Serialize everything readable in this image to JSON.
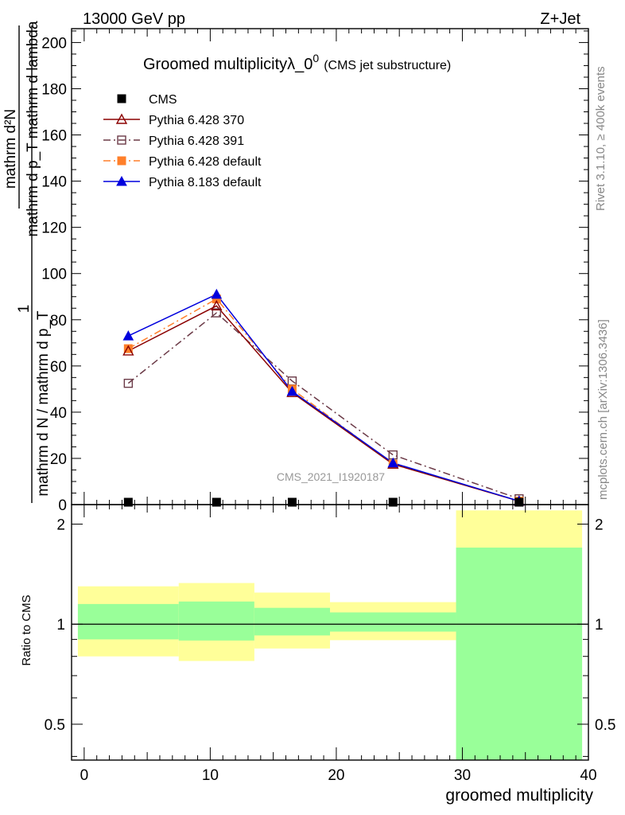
{
  "header": {
    "left": "13000 GeV pp",
    "right": "Z+Jet"
  },
  "side_labels": {
    "rivet": "Rivet 3.1.10, ≥ 400k events",
    "mcplots": "mcplots.cern.ch [arXiv:1306.3436]"
  },
  "analysis_id": "CMS_2021_I1920187",
  "chart_data": [
    {
      "type": "line",
      "title": "Groomed multiplicity",
      "title_symbol": "λ_0",
      "title_superscript": "0",
      "subtitle": "(CMS jet substructure)",
      "ylabel_numerator": "mathrm d²N",
      "ylabel_denominator": "mathrm d p_T mathrm d lambda",
      "ylabel_left_numerator": "1",
      "ylabel_left_denominator": "mathrm d N / mathrm d p_T",
      "xlim": [
        -1,
        40
      ],
      "ylim": [
        0,
        206
      ],
      "yticks": [
        0,
        20,
        40,
        60,
        80,
        100,
        120,
        140,
        160,
        180,
        200
      ],
      "legend_position": "top-left",
      "series": [
        {
          "name": "CMS",
          "color": "#000000",
          "marker": "square-filled",
          "line": "none",
          "x": [
            3.5,
            10.5,
            16.5,
            24.5,
            34.5
          ],
          "y": [
            0.3,
            0.3,
            0.3,
            0.3,
            0.3
          ]
        },
        {
          "name": "Pythia 6.428 370",
          "color": "#8b0000",
          "marker": "triangle-open",
          "line": "solid",
          "x": [
            3.5,
            10.5,
            16.5,
            24.5,
            34.5
          ],
          "y": [
            66.5,
            86,
            48.5,
            17.5,
            1.5
          ]
        },
        {
          "name": "Pythia 6.428 391",
          "color": "#6b3a47",
          "marker": "square-open",
          "line": "dashdot",
          "x": [
            3.5,
            10.5,
            16.5,
            24.5,
            34.5
          ],
          "y": [
            52.5,
            83,
            53.5,
            21.5,
            2.5
          ]
        },
        {
          "name": "Pythia 6.428 default",
          "color": "#ff7f2a",
          "marker": "square-filled",
          "line": "dashdot",
          "x": [
            3.5,
            10.5,
            16.5,
            24.5,
            34.5
          ],
          "y": [
            67.5,
            89,
            50,
            17.5,
            1.5
          ]
        },
        {
          "name": "Pythia 8.183 default",
          "color": "#0000dd",
          "marker": "triangle-filled",
          "line": "solid",
          "x": [
            3.5,
            10.5,
            16.5,
            24.5,
            34.5
          ],
          "y": [
            73,
            91,
            49,
            18,
            1.5
          ]
        }
      ]
    },
    {
      "type": "area",
      "ylabel": "Ratio to CMS",
      "xlabel": "groomed multiplicity",
      "scale": "log",
      "xlim": [
        -1,
        40
      ],
      "ylim": [
        0.39,
        2.29
      ],
      "xticks": [
        0,
        10,
        20,
        30,
        40
      ],
      "yticks": [
        0.5,
        1,
        2
      ],
      "reference_line": 1,
      "bands": [
        {
          "x": [
            -0.5,
            7.5
          ],
          "yellow": [
            0.8,
            1.3
          ],
          "green": [
            0.9,
            1.15
          ]
        },
        {
          "x": [
            7.5,
            13.5
          ],
          "yellow": [
            0.775,
            1.33
          ],
          "green": [
            0.893,
            1.17
          ]
        },
        {
          "x": [
            13.5,
            19.5
          ],
          "yellow": [
            0.845,
            1.245
          ],
          "green": [
            0.925,
            1.12
          ]
        },
        {
          "x": [
            19.5,
            29.5
          ],
          "yellow": [
            0.895,
            1.165
          ],
          "green": [
            0.95,
            1.085
          ]
        },
        {
          "x": [
            29.5,
            39.5
          ],
          "yellow": [
            0.39,
            2.2
          ],
          "green": [
            0.39,
            1.7
          ]
        }
      ],
      "colors": {
        "yellow": "#ffff99",
        "green": "#99ff99"
      }
    }
  ]
}
